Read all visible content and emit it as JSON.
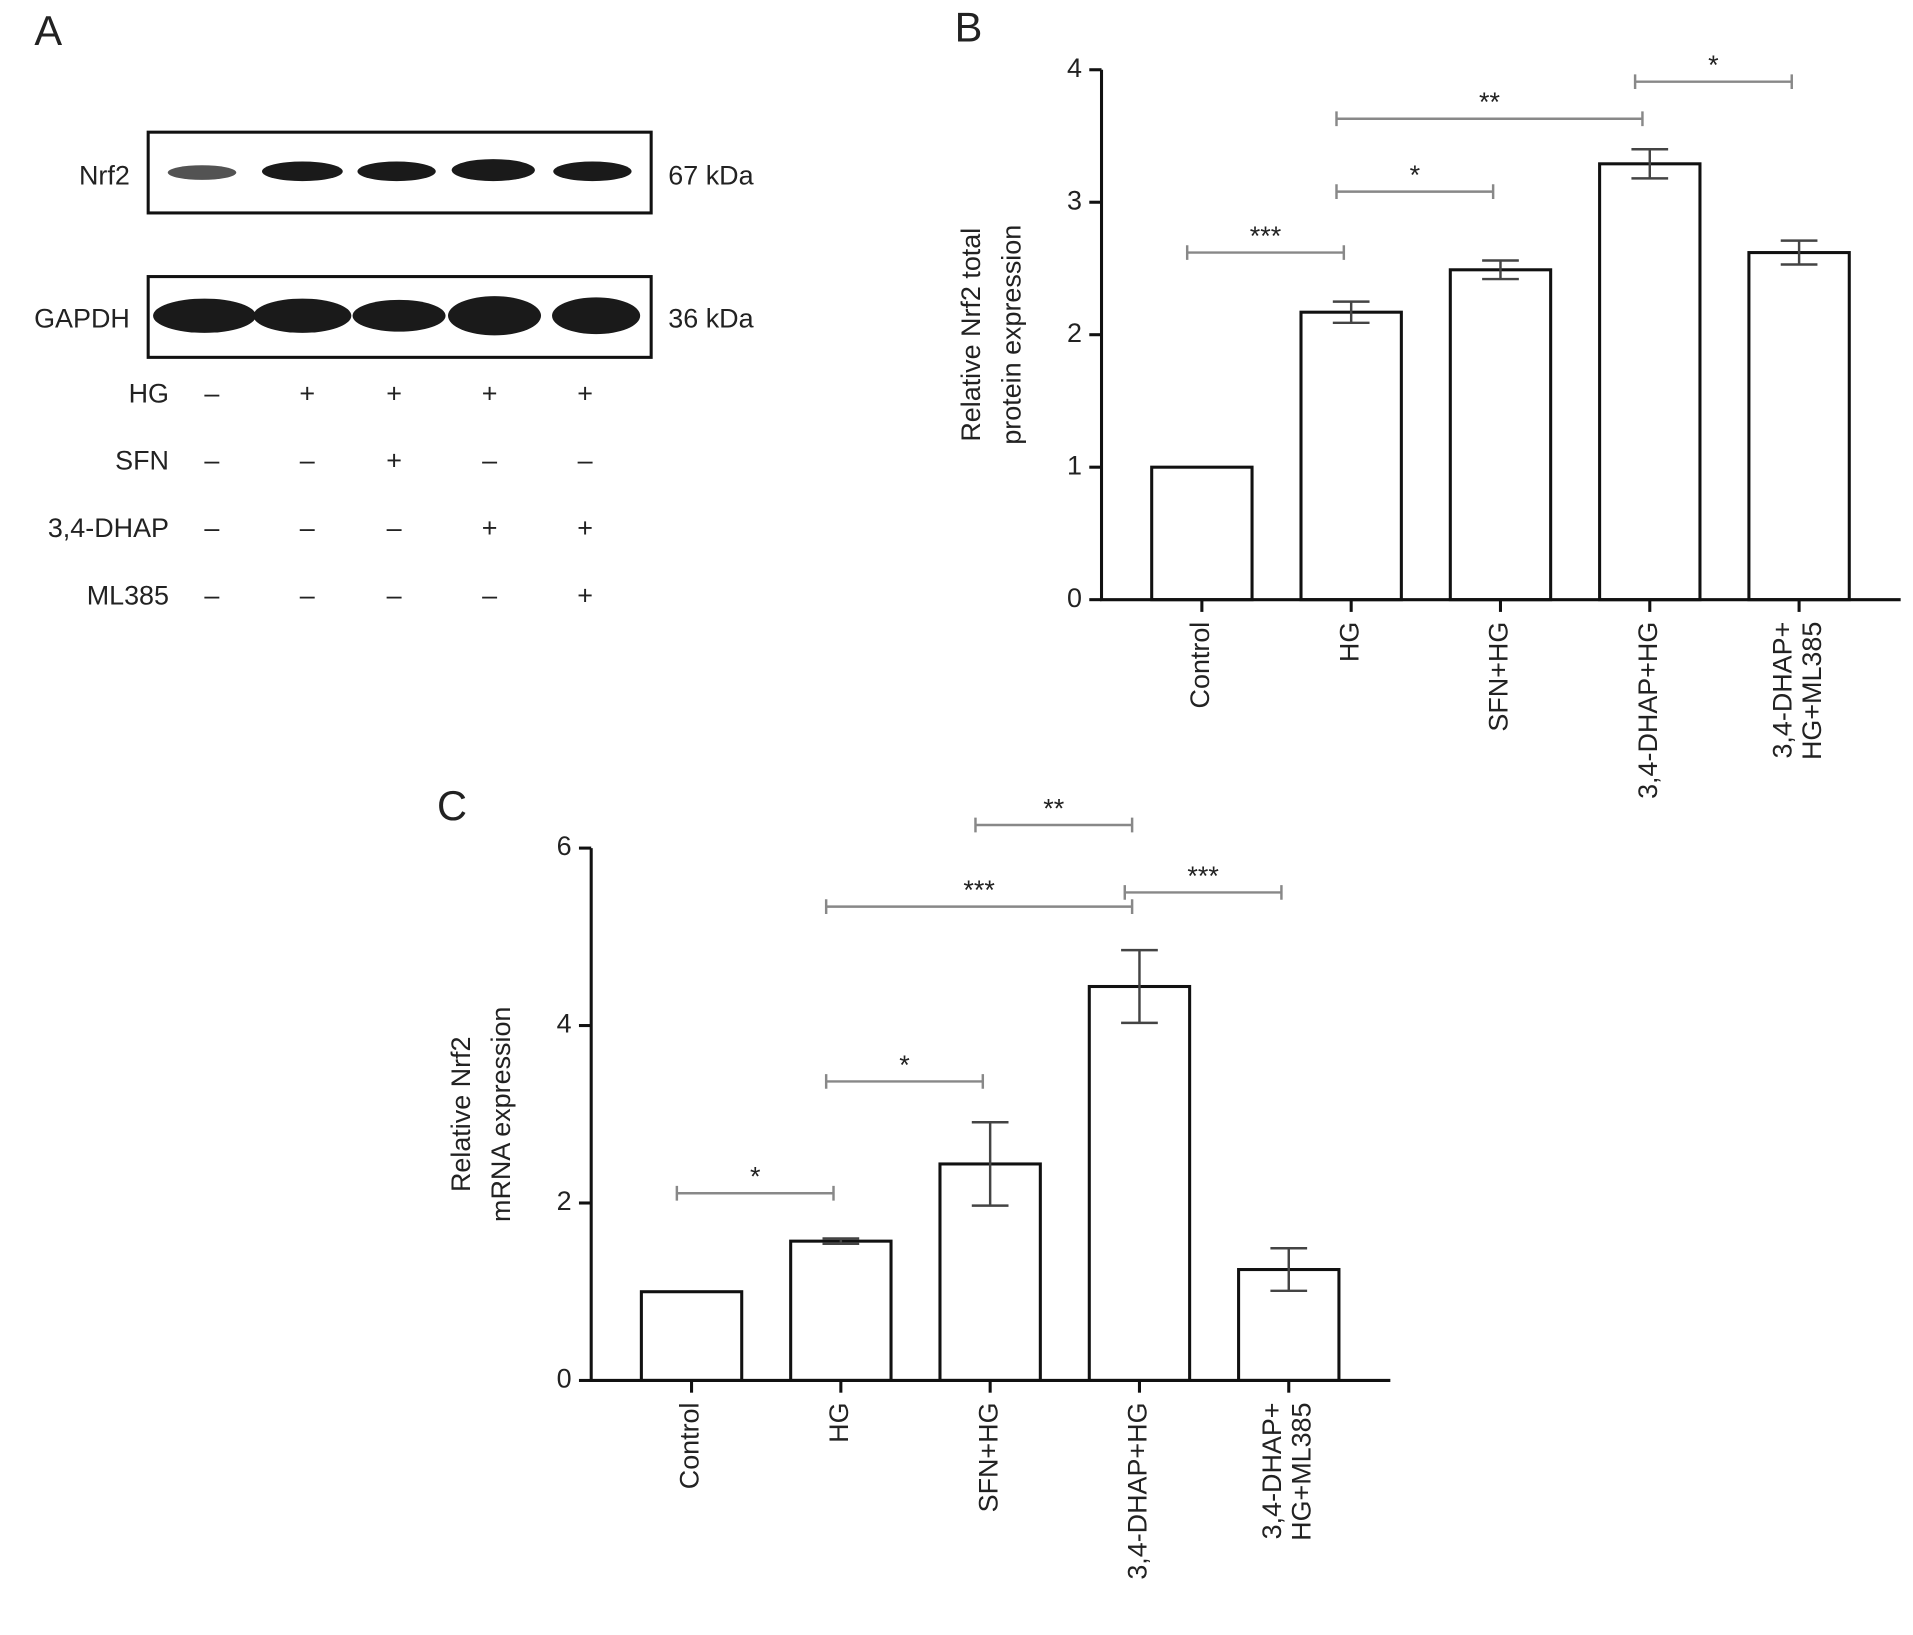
{
  "blot": {
    "panel": "A",
    "proteins": [
      {
        "name": "Nrf2",
        "size": "67 kDa"
      },
      {
        "name": "GAPDH",
        "size": "36 kDa"
      }
    ],
    "treatments": [
      {
        "name": "HG",
        "signs": [
          "–",
          "+",
          "+",
          "+",
          "+"
        ]
      },
      {
        "name": "SFN",
        "signs": [
          "–",
          "–",
          "+",
          "–",
          "–"
        ]
      },
      {
        "name": "3,4-DHAP",
        "signs": [
          "–",
          "–",
          "–",
          "+",
          "+"
        ]
      },
      {
        "name": "ML385",
        "signs": [
          "–",
          "–",
          "–",
          "–",
          "+"
        ]
      }
    ]
  },
  "chart_data": [
    {
      "type": "bar",
      "panel": "B",
      "ylabel": [
        "Relative Nrf2 total",
        "protein expression"
      ],
      "categories": [
        "Control",
        "HG",
        "SFN+HG",
        "3,4-DHAP+HG",
        "3,4-DHAP+\nHG+ML385"
      ],
      "values": [
        1.0,
        2.17,
        2.49,
        3.29,
        2.62
      ],
      "errors": [
        null,
        0.08,
        0.07,
        0.11,
        0.09
      ],
      "color": "#ffffff",
      "ylim": [
        0,
        4
      ],
      "yticks": [
        0,
        1,
        2,
        3,
        4
      ],
      "brackets": [
        {
          "from": "Control",
          "to": "HG",
          "label": "***",
          "y": 2.62
        },
        {
          "from": "HG",
          "to": "SFN+HG",
          "label": "*",
          "y": 3.08
        },
        {
          "from": "HG",
          "to": "3,4-DHAP+HG",
          "label": "**",
          "y": 3.63
        },
        {
          "from": "3,4-DHAP+HG",
          "to": "3,4-DHAP+\nHG+ML385",
          "label": "*",
          "y": 3.91
        }
      ]
    },
    {
      "type": "bar",
      "panel": "C",
      "ylabel": [
        "Relative Nrf2",
        "mRNA expression"
      ],
      "categories": [
        "Control",
        "HG",
        "SFN+HG",
        "3,4-DHAP+HG",
        "3,4-DHAP+\nHG+ML385"
      ],
      "values": [
        1.0,
        1.57,
        2.44,
        4.44,
        1.25
      ],
      "errors": [
        null,
        0.03,
        0.47,
        0.41,
        0.24
      ],
      "color": "#ffffff",
      "ylim": [
        0,
        6
      ],
      "yticks": [
        0,
        2,
        4,
        6
      ],
      "brackets": [
        {
          "from": "Control",
          "to": "HG",
          "label": "*",
          "y": 2.11
        },
        {
          "from": "HG",
          "to": "SFN+HG",
          "label": "*",
          "y": 3.37
        },
        {
          "from": "HG",
          "to": "3,4-DHAP+HG",
          "label": "***",
          "y": 5.34
        },
        {
          "from": "SFN+HG",
          "to": "3,4-DHAP+HG",
          "label": "**",
          "y": 6.26
        },
        {
          "from": "3,4-DHAP+HG",
          "to": "3,4-DHAP+\nHG+ML385",
          "label": "***",
          "y": 5.5
        }
      ]
    }
  ]
}
